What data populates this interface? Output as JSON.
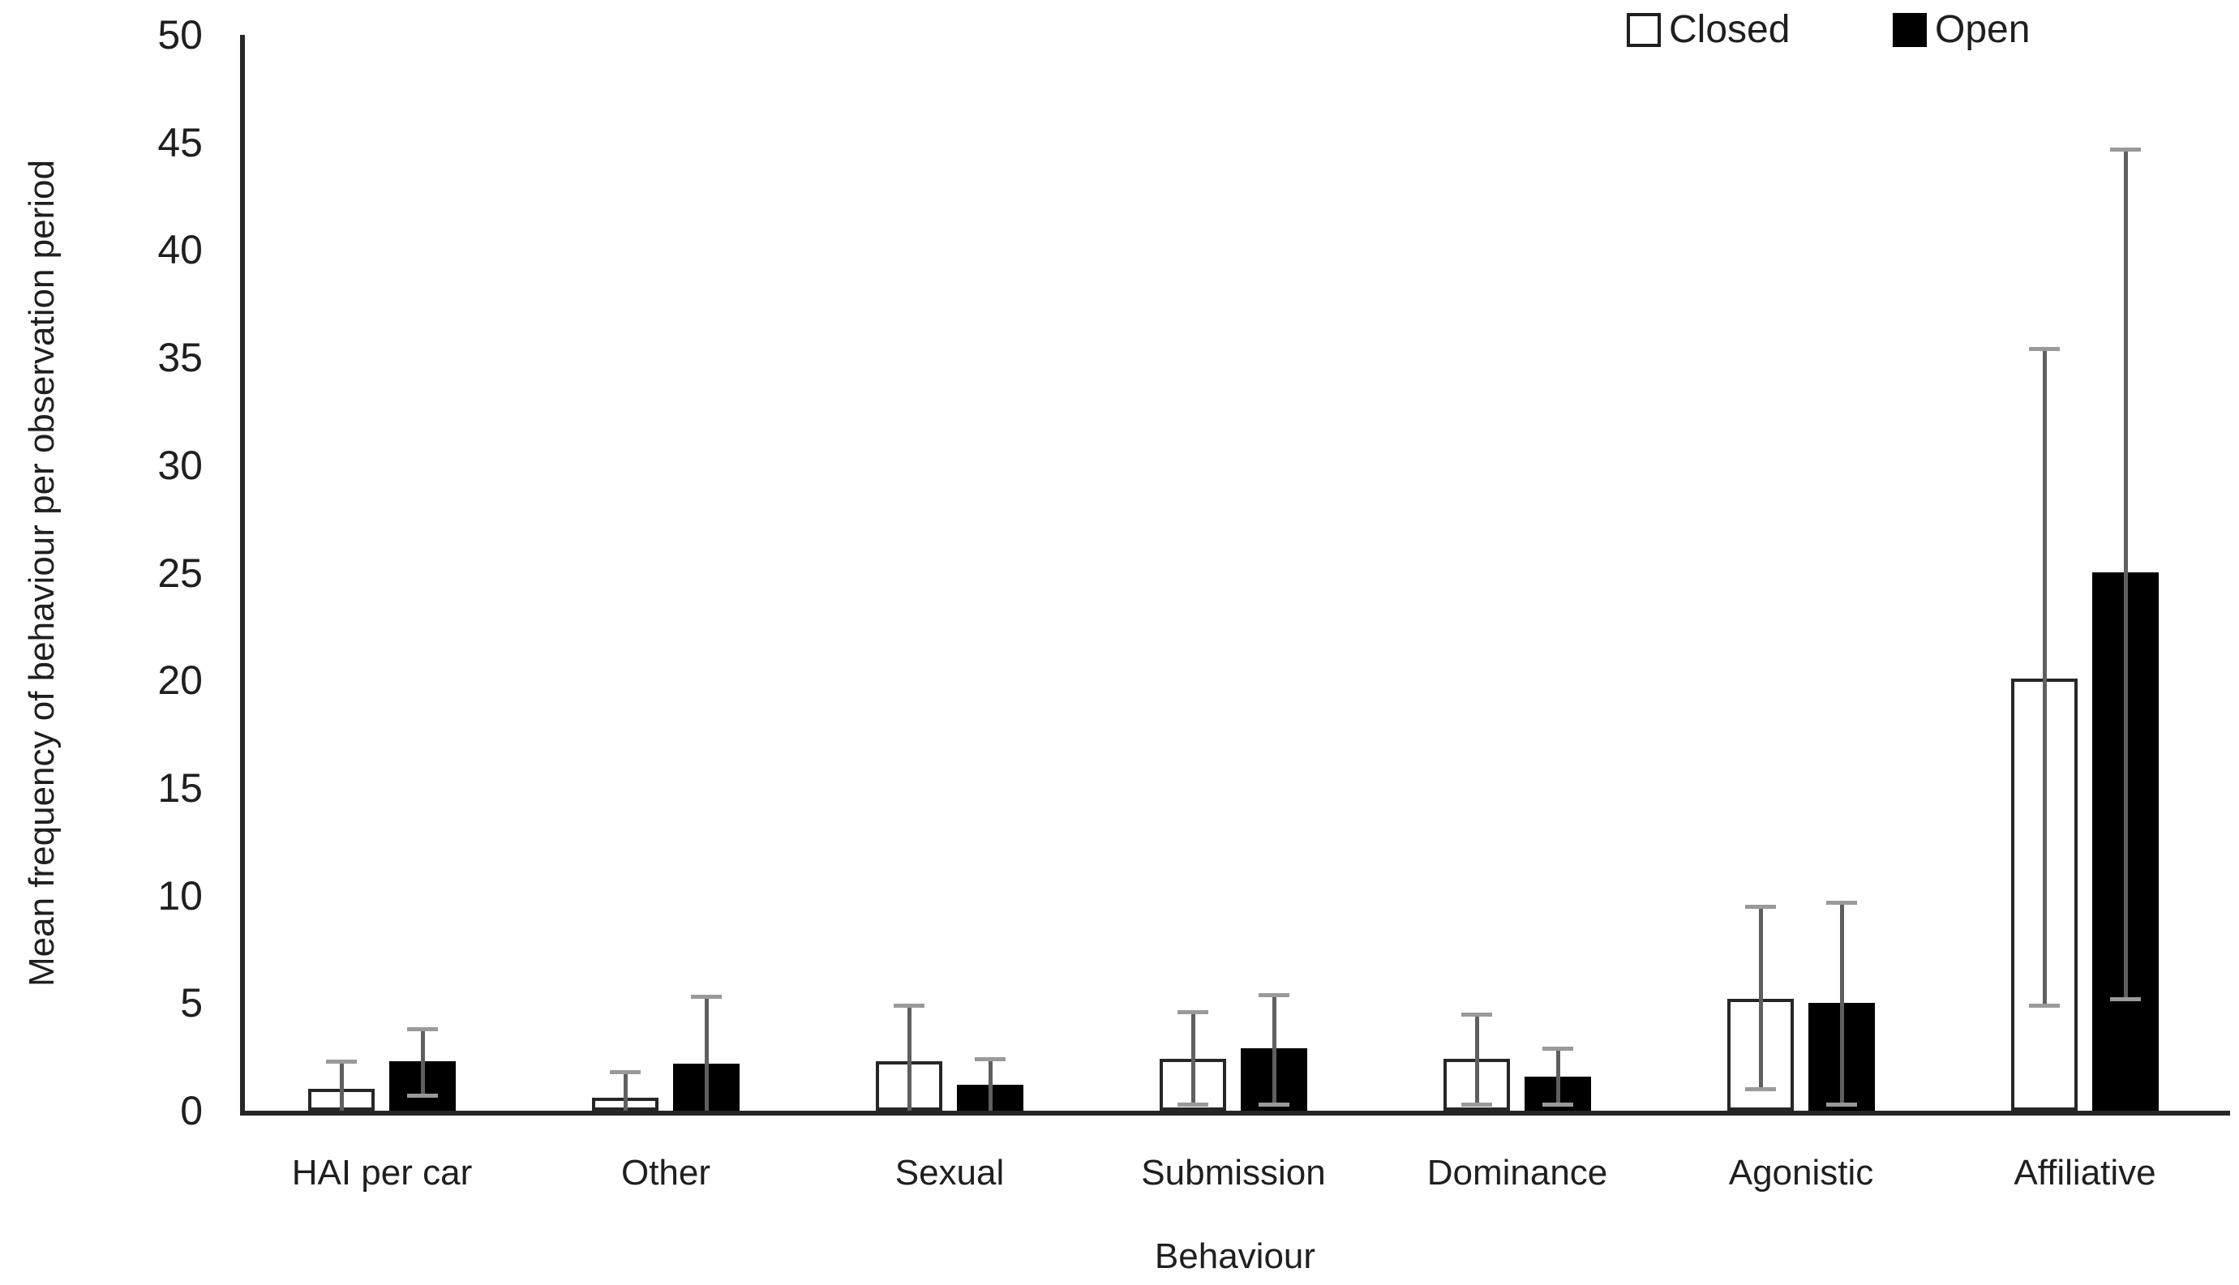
{
  "chart_data": {
    "type": "bar",
    "title": "",
    "xlabel": "Behaviour",
    "ylabel": "Mean frequency of behaviour per observation period",
    "categories": [
      "HAI per car",
      "Other",
      "Sexual",
      "Submission",
      "Dominance",
      "Agonistic",
      "Affiliative"
    ],
    "series": [
      {
        "name": "Closed",
        "fill": "#ffffff",
        "stroke": "#262626",
        "values": [
          1.0,
          0.6,
          2.3,
          2.4,
          2.4,
          5.2,
          20.1
        ],
        "error_high": [
          2.3,
          1.8,
          4.9,
          4.6,
          4.5,
          9.5,
          35.4
        ],
        "error_low": [
          null,
          null,
          null,
          0.3,
          0.3,
          1.0,
          4.9
        ]
      },
      {
        "name": "Open",
        "fill": "#000000",
        "stroke": "#000000",
        "values": [
          2.3,
          2.2,
          1.2,
          2.9,
          1.6,
          5.0,
          25.0
        ],
        "error_high": [
          3.8,
          5.3,
          2.4,
          5.4,
          2.9,
          9.7,
          44.7
        ],
        "error_low": [
          0.7,
          null,
          null,
          0.3,
          0.3,
          0.3,
          5.2
        ]
      }
    ],
    "ylim": [
      0,
      50
    ],
    "yticks": [
      0,
      5,
      10,
      15,
      20,
      25,
      30,
      35,
      40,
      45,
      50
    ],
    "grid": "off",
    "legend_position": "top-right",
    "colors": {
      "axis": "#262626",
      "error_bar_line": "#5f5f5f",
      "error_bar_cap": "#9a9a9a",
      "text": "#1f1f1f",
      "closed_fill": "#ffffff",
      "open_fill": "#000000"
    }
  }
}
